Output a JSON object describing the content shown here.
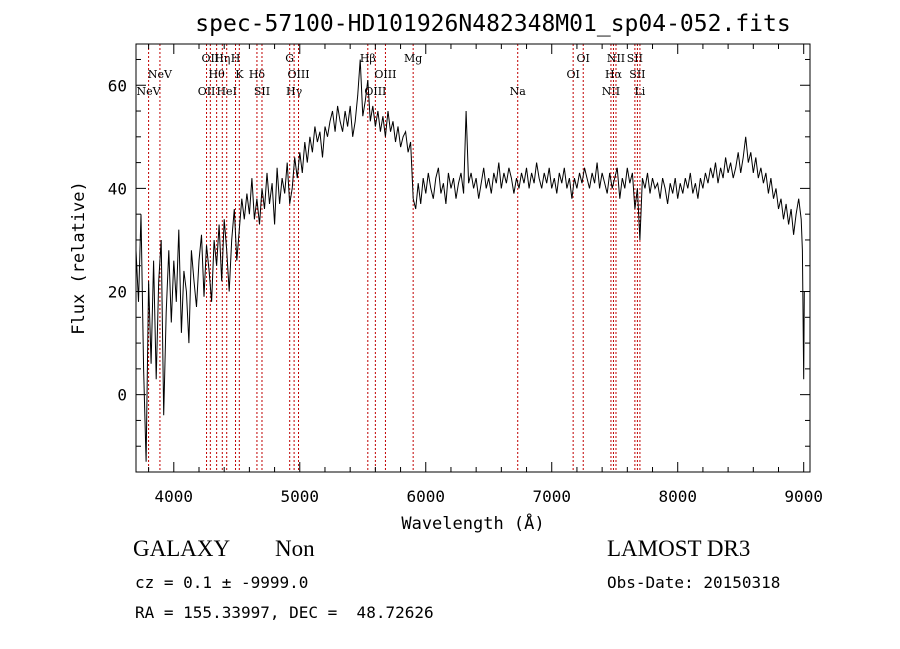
{
  "chart_data": {
    "type": "line",
    "title": "spec-57100-HD101926N482348M01_sp04-052.fits",
    "xlabel": "Wavelength (Å)",
    "ylabel": "Flux (relative)",
    "xlim": [
      3700,
      9050
    ],
    "ylim": [
      -15,
      68
    ],
    "x_ticks": [
      4000,
      5000,
      6000,
      7000,
      8000,
      9000
    ],
    "y_ticks": [
      0,
      20,
      40,
      60
    ],
    "grid": false,
    "series": [
      {
        "color": "#000000",
        "points": [
          [
            3700,
            28
          ],
          [
            3720,
            18
          ],
          [
            3740,
            35
          ],
          [
            3760,
            5
          ],
          [
            3780,
            -13
          ],
          [
            3800,
            22
          ],
          [
            3820,
            6
          ],
          [
            3840,
            26
          ],
          [
            3860,
            3
          ],
          [
            3880,
            22
          ],
          [
            3900,
            30
          ],
          [
            3920,
            -4
          ],
          [
            3940,
            16
          ],
          [
            3960,
            28
          ],
          [
            3980,
            14
          ],
          [
            4000,
            26
          ],
          [
            4020,
            18
          ],
          [
            4040,
            32
          ],
          [
            4060,
            12
          ],
          [
            4080,
            24
          ],
          [
            4100,
            20
          ],
          [
            4120,
            10
          ],
          [
            4140,
            28
          ],
          [
            4160,
            22
          ],
          [
            4180,
            17
          ],
          [
            4200,
            26
          ],
          [
            4220,
            31
          ],
          [
            4240,
            19
          ],
          [
            4260,
            29
          ],
          [
            4280,
            24
          ],
          [
            4300,
            18
          ],
          [
            4320,
            30
          ],
          [
            4340,
            25
          ],
          [
            4360,
            33
          ],
          [
            4380,
            22
          ],
          [
            4400,
            34
          ],
          [
            4420,
            28
          ],
          [
            4440,
            20
          ],
          [
            4460,
            30
          ],
          [
            4480,
            36
          ],
          [
            4500,
            26
          ],
          [
            4520,
            32
          ],
          [
            4540,
            38
          ],
          [
            4560,
            34
          ],
          [
            4580,
            39
          ],
          [
            4600,
            35
          ],
          [
            4620,
            42
          ],
          [
            4640,
            34
          ],
          [
            4660,
            38
          ],
          [
            4680,
            33
          ],
          [
            4700,
            40
          ],
          [
            4720,
            36
          ],
          [
            4740,
            43
          ],
          [
            4760,
            37
          ],
          [
            4780,
            41
          ],
          [
            4800,
            33
          ],
          [
            4820,
            44
          ],
          [
            4840,
            37
          ],
          [
            4860,
            42
          ],
          [
            4880,
            39
          ],
          [
            4900,
            45
          ],
          [
            4920,
            37
          ],
          [
            4940,
            40
          ],
          [
            4960,
            46
          ],
          [
            4980,
            42
          ],
          [
            5000,
            47
          ],
          [
            5020,
            43
          ],
          [
            5040,
            49
          ],
          [
            5060,
            45
          ],
          [
            5080,
            50
          ],
          [
            5100,
            47
          ],
          [
            5120,
            52
          ],
          [
            5140,
            49
          ],
          [
            5160,
            51
          ],
          [
            5180,
            46
          ],
          [
            5200,
            52
          ],
          [
            5220,
            50
          ],
          [
            5240,
            53
          ],
          [
            5260,
            55
          ],
          [
            5280,
            51
          ],
          [
            5300,
            56
          ],
          [
            5320,
            53
          ],
          [
            5340,
            51
          ],
          [
            5360,
            55
          ],
          [
            5380,
            52
          ],
          [
            5400,
            56
          ],
          [
            5420,
            50
          ],
          [
            5440,
            53
          ],
          [
            5460,
            58
          ],
          [
            5480,
            65
          ],
          [
            5500,
            54
          ],
          [
            5520,
            57
          ],
          [
            5540,
            61
          ],
          [
            5560,
            53
          ],
          [
            5580,
            56
          ],
          [
            5600,
            52
          ],
          [
            5620,
            55
          ],
          [
            5640,
            51
          ],
          [
            5660,
            54
          ],
          [
            5680,
            50
          ],
          [
            5700,
            55
          ],
          [
            5720,
            51
          ],
          [
            5740,
            53
          ],
          [
            5760,
            49
          ],
          [
            5780,
            52
          ],
          [
            5800,
            48
          ],
          [
            5820,
            50
          ],
          [
            5840,
            51
          ],
          [
            5860,
            47
          ],
          [
            5880,
            49
          ],
          [
            5900,
            38
          ],
          [
            5920,
            36
          ],
          [
            5940,
            41
          ],
          [
            5960,
            37
          ],
          [
            5980,
            42
          ],
          [
            6000,
            39
          ],
          [
            6020,
            43
          ],
          [
            6040,
            40
          ],
          [
            6060,
            38
          ],
          [
            6080,
            42
          ],
          [
            6100,
            44
          ],
          [
            6120,
            39
          ],
          [
            6140,
            41
          ],
          [
            6160,
            37
          ],
          [
            6180,
            43
          ],
          [
            6200,
            40
          ],
          [
            6220,
            42
          ],
          [
            6240,
            38
          ],
          [
            6260,
            41
          ],
          [
            6280,
            43
          ],
          [
            6300,
            39
          ],
          [
            6320,
            55
          ],
          [
            6340,
            41
          ],
          [
            6360,
            43
          ],
          [
            6380,
            40
          ],
          [
            6400,
            42
          ],
          [
            6420,
            38
          ],
          [
            6440,
            41
          ],
          [
            6460,
            44
          ],
          [
            6480,
            40
          ],
          [
            6500,
            42
          ],
          [
            6520,
            39
          ],
          [
            6540,
            43
          ],
          [
            6560,
            41
          ],
          [
            6580,
            45
          ],
          [
            6600,
            40
          ],
          [
            6620,
            43
          ],
          [
            6640,
            41
          ],
          [
            6660,
            44
          ],
          [
            6680,
            42
          ],
          [
            6700,
            39
          ],
          [
            6720,
            42
          ],
          [
            6740,
            40
          ],
          [
            6760,
            43
          ],
          [
            6780,
            41
          ],
          [
            6800,
            44
          ],
          [
            6820,
            40
          ],
          [
            6840,
            43
          ],
          [
            6860,
            41
          ],
          [
            6880,
            45
          ],
          [
            6900,
            42
          ],
          [
            6920,
            40
          ],
          [
            6940,
            43
          ],
          [
            6960,
            41
          ],
          [
            6980,
            44
          ],
          [
            7000,
            40
          ],
          [
            7020,
            42
          ],
          [
            7040,
            39
          ],
          [
            7060,
            43
          ],
          [
            7080,
            41
          ],
          [
            7100,
            44
          ],
          [
            7120,
            40
          ],
          [
            7140,
            42
          ],
          [
            7160,
            38
          ],
          [
            7180,
            42
          ],
          [
            7200,
            40
          ],
          [
            7220,
            43
          ],
          [
            7240,
            41
          ],
          [
            7260,
            44
          ],
          [
            7280,
            42
          ],
          [
            7300,
            40
          ],
          [
            7320,
            43
          ],
          [
            7340,
            41
          ],
          [
            7360,
            45
          ],
          [
            7380,
            40
          ],
          [
            7400,
            43
          ],
          [
            7420,
            41
          ],
          [
            7440,
            39
          ],
          [
            7460,
            43
          ],
          [
            7480,
            40
          ],
          [
            7500,
            42
          ],
          [
            7520,
            44
          ],
          [
            7540,
            38
          ],
          [
            7560,
            42
          ],
          [
            7580,
            40
          ],
          [
            7600,
            44
          ],
          [
            7620,
            41
          ],
          [
            7640,
            43
          ],
          [
            7660,
            36
          ],
          [
            7680,
            40
          ],
          [
            7700,
            30
          ],
          [
            7720,
            42
          ],
          [
            7740,
            40
          ],
          [
            7760,
            43
          ],
          [
            7780,
            39
          ],
          [
            7800,
            42
          ],
          [
            7820,
            40
          ],
          [
            7840,
            41
          ],
          [
            7860,
            38
          ],
          [
            7880,
            42
          ],
          [
            7900,
            40
          ],
          [
            7920,
            37
          ],
          [
            7940,
            41
          ],
          [
            7960,
            39
          ],
          [
            7980,
            42
          ],
          [
            8000,
            38
          ],
          [
            8020,
            41
          ],
          [
            8040,
            39
          ],
          [
            8060,
            42
          ],
          [
            8080,
            40
          ],
          [
            8100,
            43
          ],
          [
            8120,
            39
          ],
          [
            8140,
            41
          ],
          [
            8160,
            38
          ],
          [
            8180,
            42
          ],
          [
            8200,
            40
          ],
          [
            8220,
            43
          ],
          [
            8240,
            41
          ],
          [
            8260,
            44
          ],
          [
            8280,
            42
          ],
          [
            8300,
            45
          ],
          [
            8320,
            41
          ],
          [
            8340,
            44
          ],
          [
            8360,
            42
          ],
          [
            8380,
            46
          ],
          [
            8400,
            43
          ],
          [
            8420,
            45
          ],
          [
            8440,
            42
          ],
          [
            8460,
            44
          ],
          [
            8480,
            47
          ],
          [
            8500,
            43
          ],
          [
            8520,
            46
          ],
          [
            8540,
            50
          ],
          [
            8560,
            45
          ],
          [
            8580,
            47
          ],
          [
            8600,
            43
          ],
          [
            8620,
            46
          ],
          [
            8640,
            42
          ],
          [
            8660,
            44
          ],
          [
            8680,
            41
          ],
          [
            8700,
            43
          ],
          [
            8720,
            39
          ],
          [
            8740,
            42
          ],
          [
            8760,
            38
          ],
          [
            8780,
            40
          ],
          [
            8800,
            36
          ],
          [
            8820,
            38
          ],
          [
            8840,
            34
          ],
          [
            8860,
            37
          ],
          [
            8880,
            33
          ],
          [
            8900,
            36
          ],
          [
            8920,
            31
          ],
          [
            8940,
            35
          ],
          [
            8960,
            38
          ],
          [
            8980,
            34
          ],
          [
            8990,
            28
          ],
          [
            9000,
            3
          ],
          [
            9005,
            20
          ]
        ]
      }
    ],
    "line_color": "#c00000",
    "lines": [
      {
        "x": 3800,
        "label": "NeV",
        "row": 3
      },
      {
        "x": 3890,
        "label": "NeV",
        "row": 2
      },
      {
        "x": 4260,
        "label": "OII",
        "row": 3
      },
      {
        "x": 4290,
        "label": "OII",
        "row": 1
      },
      {
        "x": 4340,
        "label": "Hθ",
        "row": 2
      },
      {
        "x": 4385,
        "label": "Hη",
        "row": 1
      },
      {
        "x": 4420,
        "label": "HeI",
        "row": 3
      },
      {
        "x": 4490,
        "label": "H",
        "row": 1
      },
      {
        "x": 4520,
        "label": "K",
        "row": 2
      },
      {
        "x": 4660,
        "label": "Hδ",
        "row": 2
      },
      {
        "x": 4700,
        "label": "SII",
        "row": 3
      },
      {
        "x": 4920,
        "label": "G",
        "row": 1
      },
      {
        "x": 4955,
        "label": "Hγ",
        "row": 3
      },
      {
        "x": 4990,
        "label": "OIII",
        "row": 2
      },
      {
        "x": 5540,
        "label": "Hβ",
        "row": 1
      },
      {
        "x": 5600,
        "label": "OIII",
        "row": 3
      },
      {
        "x": 5680,
        "label": "OIII",
        "row": 2
      },
      {
        "x": 5900,
        "label": "Mg",
        "row": 1
      },
      {
        "x": 6730,
        "label": "Na",
        "row": 3
      },
      {
        "x": 7170,
        "label": "OI",
        "row": 2
      },
      {
        "x": 7250,
        "label": "OI",
        "row": 1
      },
      {
        "x": 7470,
        "label": "NII",
        "row": 3
      },
      {
        "x": 7490,
        "label": "Hα",
        "row": 2
      },
      {
        "x": 7510,
        "label": "NII",
        "row": 1
      },
      {
        "x": 7660,
        "label": "SII",
        "row": 1
      },
      {
        "x": 7680,
        "label": "SII",
        "row": 2
      },
      {
        "x": 7700,
        "label": "Li",
        "row": 3
      }
    ]
  },
  "footer": {
    "object_class": "GALAXY",
    "subclass": "Non",
    "survey": "LAMOST DR3",
    "redshift": "cz = 0.1 ± -9999.0",
    "obs_date": "Obs-Date: 20150318",
    "coords": "RA = 155.33997, DEC =  48.72626"
  }
}
